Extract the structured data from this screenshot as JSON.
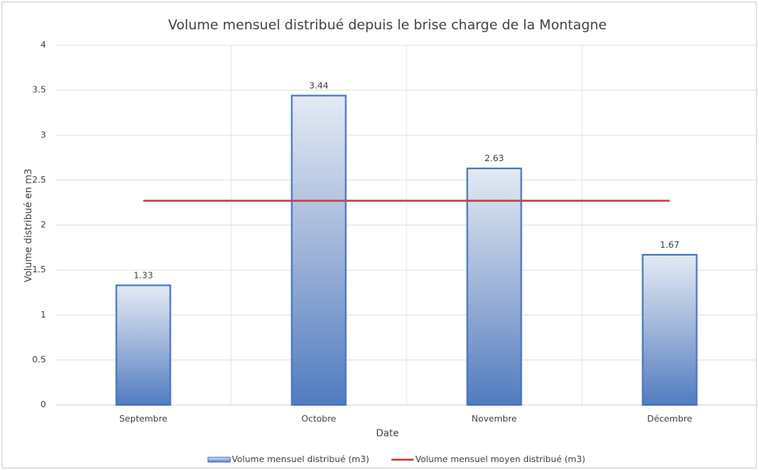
{
  "chart_data": {
    "type": "bar",
    "title": "Volume mensuel distribué depuis le brise charge de la Montagne",
    "x_label": "Date",
    "y_label": "Volume distribué en m3",
    "categories": [
      "Septembre",
      "Octobre",
      "Novembre",
      "Décembre"
    ],
    "series": [
      {
        "name": "Volume mensuel distribué (m3)",
        "type": "bar",
        "color": "#4472c4",
        "values": [
          1.33,
          3.44,
          2.63,
          1.67
        ]
      },
      {
        "name": "Volume mensuel moyen distribué (m3)",
        "type": "line",
        "color": "#c8423e",
        "values": [
          2.27,
          2.27,
          2.27,
          2.27
        ]
      }
    ],
    "ylim": [
      0,
      4
    ],
    "yticks": [
      0,
      0.5,
      1,
      1.5,
      2,
      2.5,
      3,
      3.5,
      4
    ],
    "grid": true,
    "legend": "bottom"
  }
}
